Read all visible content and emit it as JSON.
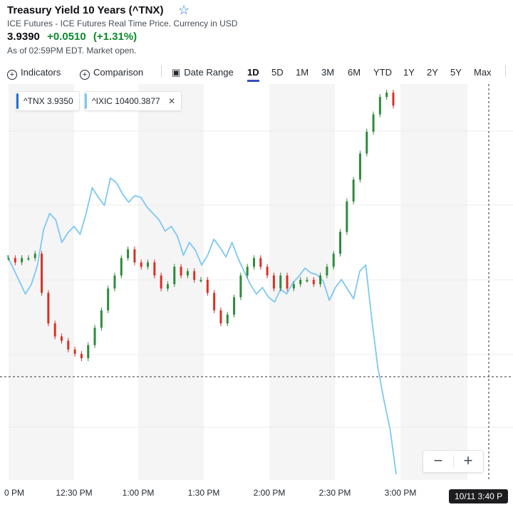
{
  "header": {
    "title": "Treasury Yield 10 Years (^TNX)",
    "subtitle": "ICE Futures - ICE Futures Real Time Price. Currency in USD",
    "price": "3.9390",
    "change": "+0.0510",
    "change_pct": "(+1.31%)",
    "as_of": "As of 02:59PM EDT. Market open."
  },
  "toolbar": {
    "indicators": "Indicators",
    "comparison": "Comparison",
    "date_range": "Date Range",
    "ranges": [
      "1D",
      "5D",
      "1M",
      "3M",
      "6M",
      "YTD",
      "1Y",
      "2Y",
      "5Y",
      "Max"
    ],
    "active_range": "1D"
  },
  "legend": {
    "tnx_label": "^TNX 3.9350",
    "ixic_label": "^IXIC 10400.3877",
    "tnx_color": "#1f6fd6",
    "ixic_color": "#7cc8f3"
  },
  "crosshair_time": "10/11 3:40 P",
  "zoom": {
    "minus": "−",
    "plus": "+"
  },
  "chart_data": {
    "type": "line",
    "x_ticks": [
      "0 PM",
      "12:30 PM",
      "1:00 PM",
      "1:30 PM",
      "2:00 PM",
      "2:30 PM",
      "3:00 PM"
    ],
    "series": [
      {
        "name": "^IXIC",
        "type": "line",
        "color": "#7cc8f3",
        "values": [
          10410,
          10402,
          10394,
          10386,
          10392,
          10404,
          10426,
          10436,
          10432,
          10418,
          10424,
          10428,
          10423,
          10436,
          10452,
          10446,
          10441,
          10458,
          10455,
          10448,
          10443,
          10447,
          10446,
          10440,
          10436,
          10432,
          10425,
          10428,
          10422,
          10410,
          10418,
          10413,
          10404,
          10410,
          10420,
          10415,
          10409,
          10418,
          10408,
          10400,
          10392,
          10386,
          10390,
          10384,
          10381,
          10389,
          10386,
          10393,
          10397,
          10402,
          10399,
          10398,
          10394,
          10382,
          10390,
          10395,
          10389,
          10383,
          10400,
          10404,
          10370,
          10340,
          10320,
          10302,
          10274
        ]
      },
      {
        "name": "^TNX",
        "type": "candlestick",
        "up_color": "#2e8b3c",
        "down_color": "#d93025",
        "values": [
          3.912,
          3.911,
          3.912,
          3.912,
          3.913,
          3.904,
          3.897,
          3.894,
          3.893,
          3.891,
          3.89,
          3.889,
          3.892,
          3.896,
          3.9,
          3.905,
          3.908,
          3.912,
          3.914,
          3.911,
          3.91,
          3.911,
          3.908,
          3.905,
          3.906,
          3.91,
          3.908,
          3.909,
          3.907,
          3.907,
          3.904,
          3.9,
          3.897,
          3.899,
          3.903,
          3.908,
          3.91,
          3.912,
          3.91,
          3.908,
          3.905,
          3.908,
          3.905,
          3.906,
          3.907,
          3.907,
          3.906,
          3.908,
          3.91,
          3.913,
          3.918,
          3.925,
          3.93,
          3.936,
          3.941,
          3.945,
          3.949,
          3.95,
          3.947
        ]
      }
    ]
  }
}
